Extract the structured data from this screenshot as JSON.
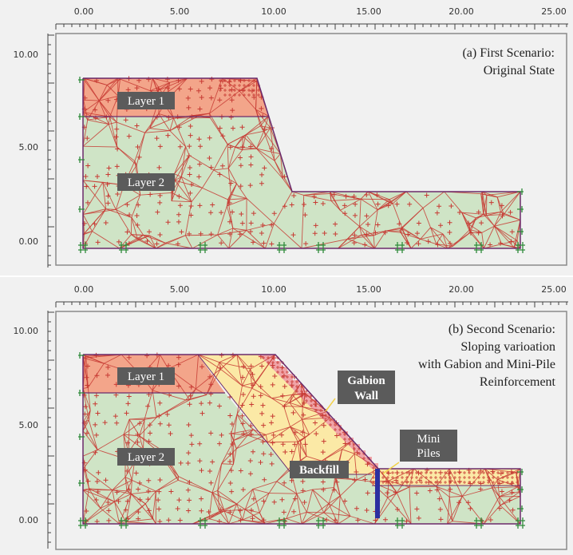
{
  "axis": {
    "x_ticks": [
      "0.00",
      "5.00",
      "10.00",
      "15.00",
      "20.00",
      "25.00"
    ],
    "y_ticks": [
      "10.00",
      "5.00",
      "0.00"
    ]
  },
  "panel_a": {
    "scenario_lines": [
      "(a) First Scenario:",
      "Original State"
    ],
    "labels": {
      "layer1": "Layer 1",
      "layer2": "Layer 2"
    }
  },
  "panel_b": {
    "scenario_lines": [
      "(b) Second Scenario:",
      "Sloping varioation",
      "with Gabion and Mini-Pile",
      "Reinforcement"
    ],
    "labels": {
      "layer1": "Layer 1",
      "layer2": "Layer 2",
      "gabion": [
        "Gabion",
        "Wall"
      ],
      "backfill": "Backfill",
      "minipiles": [
        "Mini",
        "Piles"
      ]
    }
  },
  "colors": {
    "layer1": "#f3a58a",
    "layer2": "#cfe4c6",
    "backfill": "#fbe9a6",
    "gabion": "#f0a4a8",
    "mesh": "#c73a33",
    "pile": "#2b2fa0",
    "label_bg": "#5b5b5b"
  }
}
